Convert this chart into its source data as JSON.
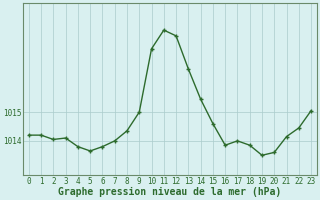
{
  "x": [
    0,
    1,
    2,
    3,
    4,
    5,
    6,
    7,
    8,
    9,
    10,
    11,
    12,
    13,
    14,
    15,
    16,
    17,
    18,
    19,
    20,
    21,
    22,
    23
  ],
  "y": [
    1014.2,
    1014.2,
    1014.05,
    1014.1,
    1013.8,
    1013.65,
    1013.8,
    1014.0,
    1014.35,
    1015.0,
    1017.2,
    1017.85,
    1017.65,
    1016.5,
    1015.45,
    1014.6,
    1013.85,
    1014.0,
    1013.85,
    1013.5,
    1013.6,
    1014.15,
    1014.45,
    1015.05
  ],
  "line_color": "#2d6b2d",
  "marker": "+",
  "marker_size": 3,
  "bg_color": "#d9f0f0",
  "grid_color": "#aacccc",
  "axis_color": "#6a8a6a",
  "yticks": [
    1014,
    1015
  ],
  "xticks": [
    0,
    1,
    2,
    3,
    4,
    5,
    6,
    7,
    8,
    9,
    10,
    11,
    12,
    13,
    14,
    15,
    16,
    17,
    18,
    19,
    20,
    21,
    22,
    23
  ],
  "xlabel": "Graphe pression niveau de la mer (hPa)",
  "xlabel_fontsize": 7,
  "xlabel_color": "#2d6b2d",
  "tick_fontsize": 5.5,
  "tick_color": "#2d6b2d",
  "ylim": [
    1012.8,
    1018.8
  ],
  "xlim": [
    -0.5,
    23.5
  ],
  "linewidth": 1.0
}
